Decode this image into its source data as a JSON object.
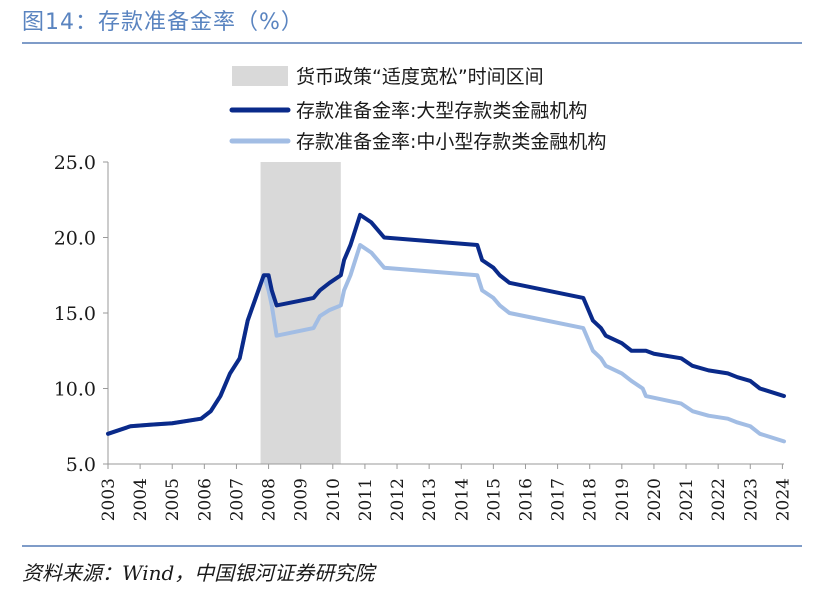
{
  "header": {
    "title": "图14：存款准备金率（%）"
  },
  "footer": {
    "source": "资料来源：Wind，中国银河证券研究院"
  },
  "chart_data": {
    "type": "line",
    "title": "存款准备金率（%）",
    "xlabel": "",
    "ylabel": "",
    "ylim": [
      5,
      25
    ],
    "yticks": [
      "25.0",
      "20.0",
      "15.0",
      "10.0",
      "5.0"
    ],
    "ytick_values": [
      25,
      20,
      15,
      10,
      5
    ],
    "xlim": [
      2003.0,
      2024.05
    ],
    "xticks": [
      "2003",
      "2004",
      "2005",
      "2006",
      "2007",
      "2008",
      "2009",
      "2010",
      "2011",
      "2012",
      "2013",
      "2014",
      "2015",
      "2016",
      "2017",
      "2018",
      "2019",
      "2020",
      "2021",
      "2022",
      "2023",
      "2024"
    ],
    "grid": false,
    "legend_position": "top",
    "shaded_region": {
      "label": "货币政策“适度宽松”时间区间",
      "x_start": 2007.75,
      "x_end": 2010.25,
      "color": "#d9d9d9"
    },
    "series": [
      {
        "name": "存款准备金率:大型存款类金融机构",
        "color": "#0a2a8a",
        "points": [
          [
            2003.0,
            7.0
          ],
          [
            2003.7,
            7.5
          ],
          [
            2004.3,
            7.6
          ],
          [
            2005.0,
            7.7
          ],
          [
            2005.9,
            8.0
          ],
          [
            2006.2,
            8.5
          ],
          [
            2006.5,
            9.5
          ],
          [
            2006.8,
            11.0
          ],
          [
            2007.1,
            12.0
          ],
          [
            2007.35,
            14.5
          ],
          [
            2007.6,
            16.0
          ],
          [
            2007.85,
            17.5
          ],
          [
            2008.0,
            17.5
          ],
          [
            2008.1,
            16.5
          ],
          [
            2008.25,
            15.5
          ],
          [
            2008.95,
            15.8
          ],
          [
            2009.4,
            16.0
          ],
          [
            2009.6,
            16.5
          ],
          [
            2009.9,
            17.0
          ],
          [
            2010.25,
            17.5
          ],
          [
            2010.35,
            18.5
          ],
          [
            2010.55,
            19.5
          ],
          [
            2010.85,
            21.5
          ],
          [
            2011.2,
            21.0
          ],
          [
            2011.6,
            20.0
          ],
          [
            2014.5,
            19.5
          ],
          [
            2014.65,
            18.5
          ],
          [
            2015.0,
            18.0
          ],
          [
            2015.2,
            17.5
          ],
          [
            2015.5,
            17.0
          ],
          [
            2017.8,
            16.0
          ],
          [
            2018.1,
            14.5
          ],
          [
            2018.35,
            14.0
          ],
          [
            2018.5,
            13.5
          ],
          [
            2019.0,
            13.0
          ],
          [
            2019.3,
            12.5
          ],
          [
            2019.75,
            12.5
          ],
          [
            2020.0,
            12.3
          ],
          [
            2020.85,
            12.0
          ],
          [
            2021.2,
            11.5
          ],
          [
            2021.7,
            11.2
          ],
          [
            2022.3,
            11.0
          ],
          [
            2022.6,
            10.75
          ],
          [
            2023.0,
            10.5
          ],
          [
            2023.3,
            10.0
          ],
          [
            2024.05,
            9.5
          ]
        ]
      },
      {
        "name": "存款准备金率:中小型存款类金融机构",
        "color": "#a2bde4",
        "points": [
          [
            2003.0,
            7.0
          ],
          [
            2003.7,
            7.5
          ],
          [
            2004.3,
            7.6
          ],
          [
            2005.0,
            7.7
          ],
          [
            2005.9,
            8.0
          ],
          [
            2006.2,
            8.5
          ],
          [
            2006.5,
            9.5
          ],
          [
            2006.8,
            11.0
          ],
          [
            2007.1,
            12.0
          ],
          [
            2007.35,
            14.5
          ],
          [
            2007.6,
            16.0
          ],
          [
            2007.85,
            17.5
          ],
          [
            2008.0,
            16.5
          ],
          [
            2008.1,
            15.5
          ],
          [
            2008.25,
            13.5
          ],
          [
            2009.4,
            14.0
          ],
          [
            2009.6,
            14.8
          ],
          [
            2009.9,
            15.2
          ],
          [
            2010.25,
            15.5
          ],
          [
            2010.35,
            16.5
          ],
          [
            2010.55,
            17.5
          ],
          [
            2010.85,
            19.5
          ],
          [
            2011.2,
            19.0
          ],
          [
            2011.6,
            18.0
          ],
          [
            2014.5,
            17.5
          ],
          [
            2014.65,
            16.5
          ],
          [
            2015.0,
            16.0
          ],
          [
            2015.2,
            15.5
          ],
          [
            2015.5,
            15.0
          ],
          [
            2017.8,
            14.0
          ],
          [
            2018.1,
            12.5
          ],
          [
            2018.35,
            12.0
          ],
          [
            2018.5,
            11.5
          ],
          [
            2019.0,
            11.0
          ],
          [
            2019.3,
            10.5
          ],
          [
            2019.65,
            10.0
          ],
          [
            2019.75,
            9.5
          ],
          [
            2020.85,
            9.0
          ],
          [
            2021.2,
            8.5
          ],
          [
            2021.7,
            8.2
          ],
          [
            2022.3,
            8.0
          ],
          [
            2022.6,
            7.75
          ],
          [
            2023.0,
            7.5
          ],
          [
            2023.3,
            7.0
          ],
          [
            2024.05,
            6.5
          ]
        ]
      }
    ]
  }
}
